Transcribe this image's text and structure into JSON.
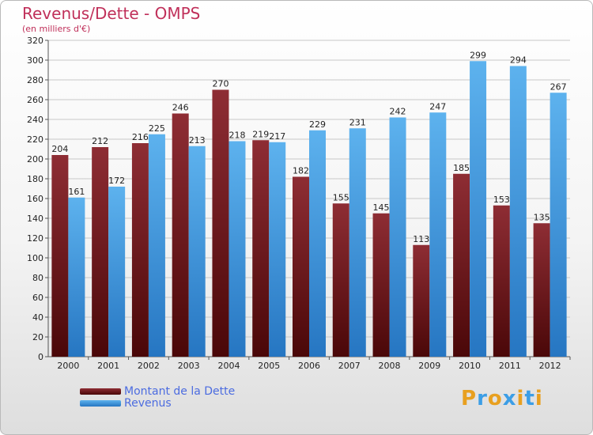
{
  "header": {
    "title": "Revenus/Dette - OMPS",
    "subtitle": "(en milliers d'€)"
  },
  "colors": {
    "dette": "#7a1e22",
    "revenus": "#3c9ee6",
    "title": "#c0305a",
    "legend_text": "#4c6ce0"
  },
  "chart_data": {
    "type": "bar",
    "title": "Revenus/Dette - OMPS",
    "subtitle": "(en milliers d'€)",
    "categories": [
      "2000",
      "2001",
      "2002",
      "2003",
      "2004",
      "2005",
      "2006",
      "2007",
      "2008",
      "2009",
      "2010",
      "2011",
      "2012"
    ],
    "series": [
      {
        "name": "Montant de la Dette",
        "values": [
          204,
          212,
          216,
          246,
          270,
          219,
          182,
          155,
          145,
          113,
          185,
          153,
          135
        ]
      },
      {
        "name": "Revenus",
        "values": [
          161,
          172,
          225,
          213,
          218,
          217,
          229,
          231,
          242,
          247,
          299,
          294,
          267
        ]
      }
    ],
    "ylim": [
      0,
      320
    ],
    "yticks": [
      0,
      20,
      40,
      60,
      80,
      100,
      120,
      140,
      160,
      180,
      200,
      220,
      240,
      260,
      280,
      300,
      320
    ],
    "grid": true,
    "legend": "bottom-left"
  },
  "legend": {
    "items": [
      {
        "label": "Montant de la Dette"
      },
      {
        "label": "Revenus"
      }
    ]
  },
  "logo": {
    "letters": [
      "P",
      "r",
      "o",
      "x",
      "i",
      "t",
      "i"
    ],
    "letter_colors": [
      "#e8a020",
      "#3c9ee6",
      "#e8a020",
      "#3c9ee6",
      "#e8a020",
      "#3c9ee6",
      "#e8a020"
    ]
  }
}
